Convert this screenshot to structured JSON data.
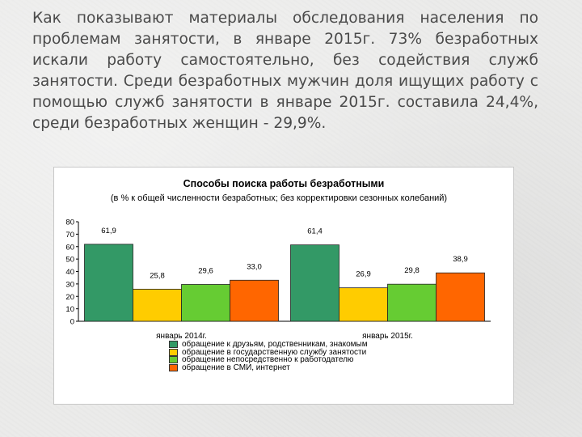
{
  "intro_text": "Как показывают материалы обследования населения по проблемам занятости, в январе 2015г. 73% безработных искали работу самостоятельно, без содействия служб занятости. Среди безработных мужчин доля ищущих работу с помощью служб занятости в январе 2015г. составила 24,4%, среди безработных женщин - 29,9%.",
  "chart_data": {
    "type": "bar",
    "title": "Способы поиска работы безработными",
    "subtitle": "(в % к общей численности безработных; без корректировки сезонных колебаний)",
    "categories": [
      "январь 2014г.",
      "январь 2015г."
    ],
    "series": [
      {
        "name": "обращение к друзьям, родственникам, знакомым",
        "values": [
          61.9,
          61.4
        ],
        "labels": [
          "61,9",
          "61,4"
        ],
        "color": "#339966"
      },
      {
        "name": "обращение в государственную службу занятости",
        "values": [
          25.8,
          26.9
        ],
        "labels": [
          "25,8",
          "26,9"
        ],
        "color": "#ffcc00"
      },
      {
        "name": "обращение непосредственно к работодателю",
        "values": [
          29.6,
          29.8
        ],
        "labels": [
          "29,6",
          "29,8"
        ],
        "color": "#66cc33"
      },
      {
        "name": "обращение в СМИ, интернет",
        "values": [
          33.0,
          38.9
        ],
        "labels": [
          "33,0",
          "38,9"
        ],
        "color": "#ff6600"
      }
    ],
    "ylim": [
      0,
      80
    ],
    "yticks": [
      "0",
      "10",
      "20",
      "30",
      "40",
      "50",
      "60",
      "70",
      "80"
    ],
    "legend_position": "bottom",
    "grid": false
  }
}
